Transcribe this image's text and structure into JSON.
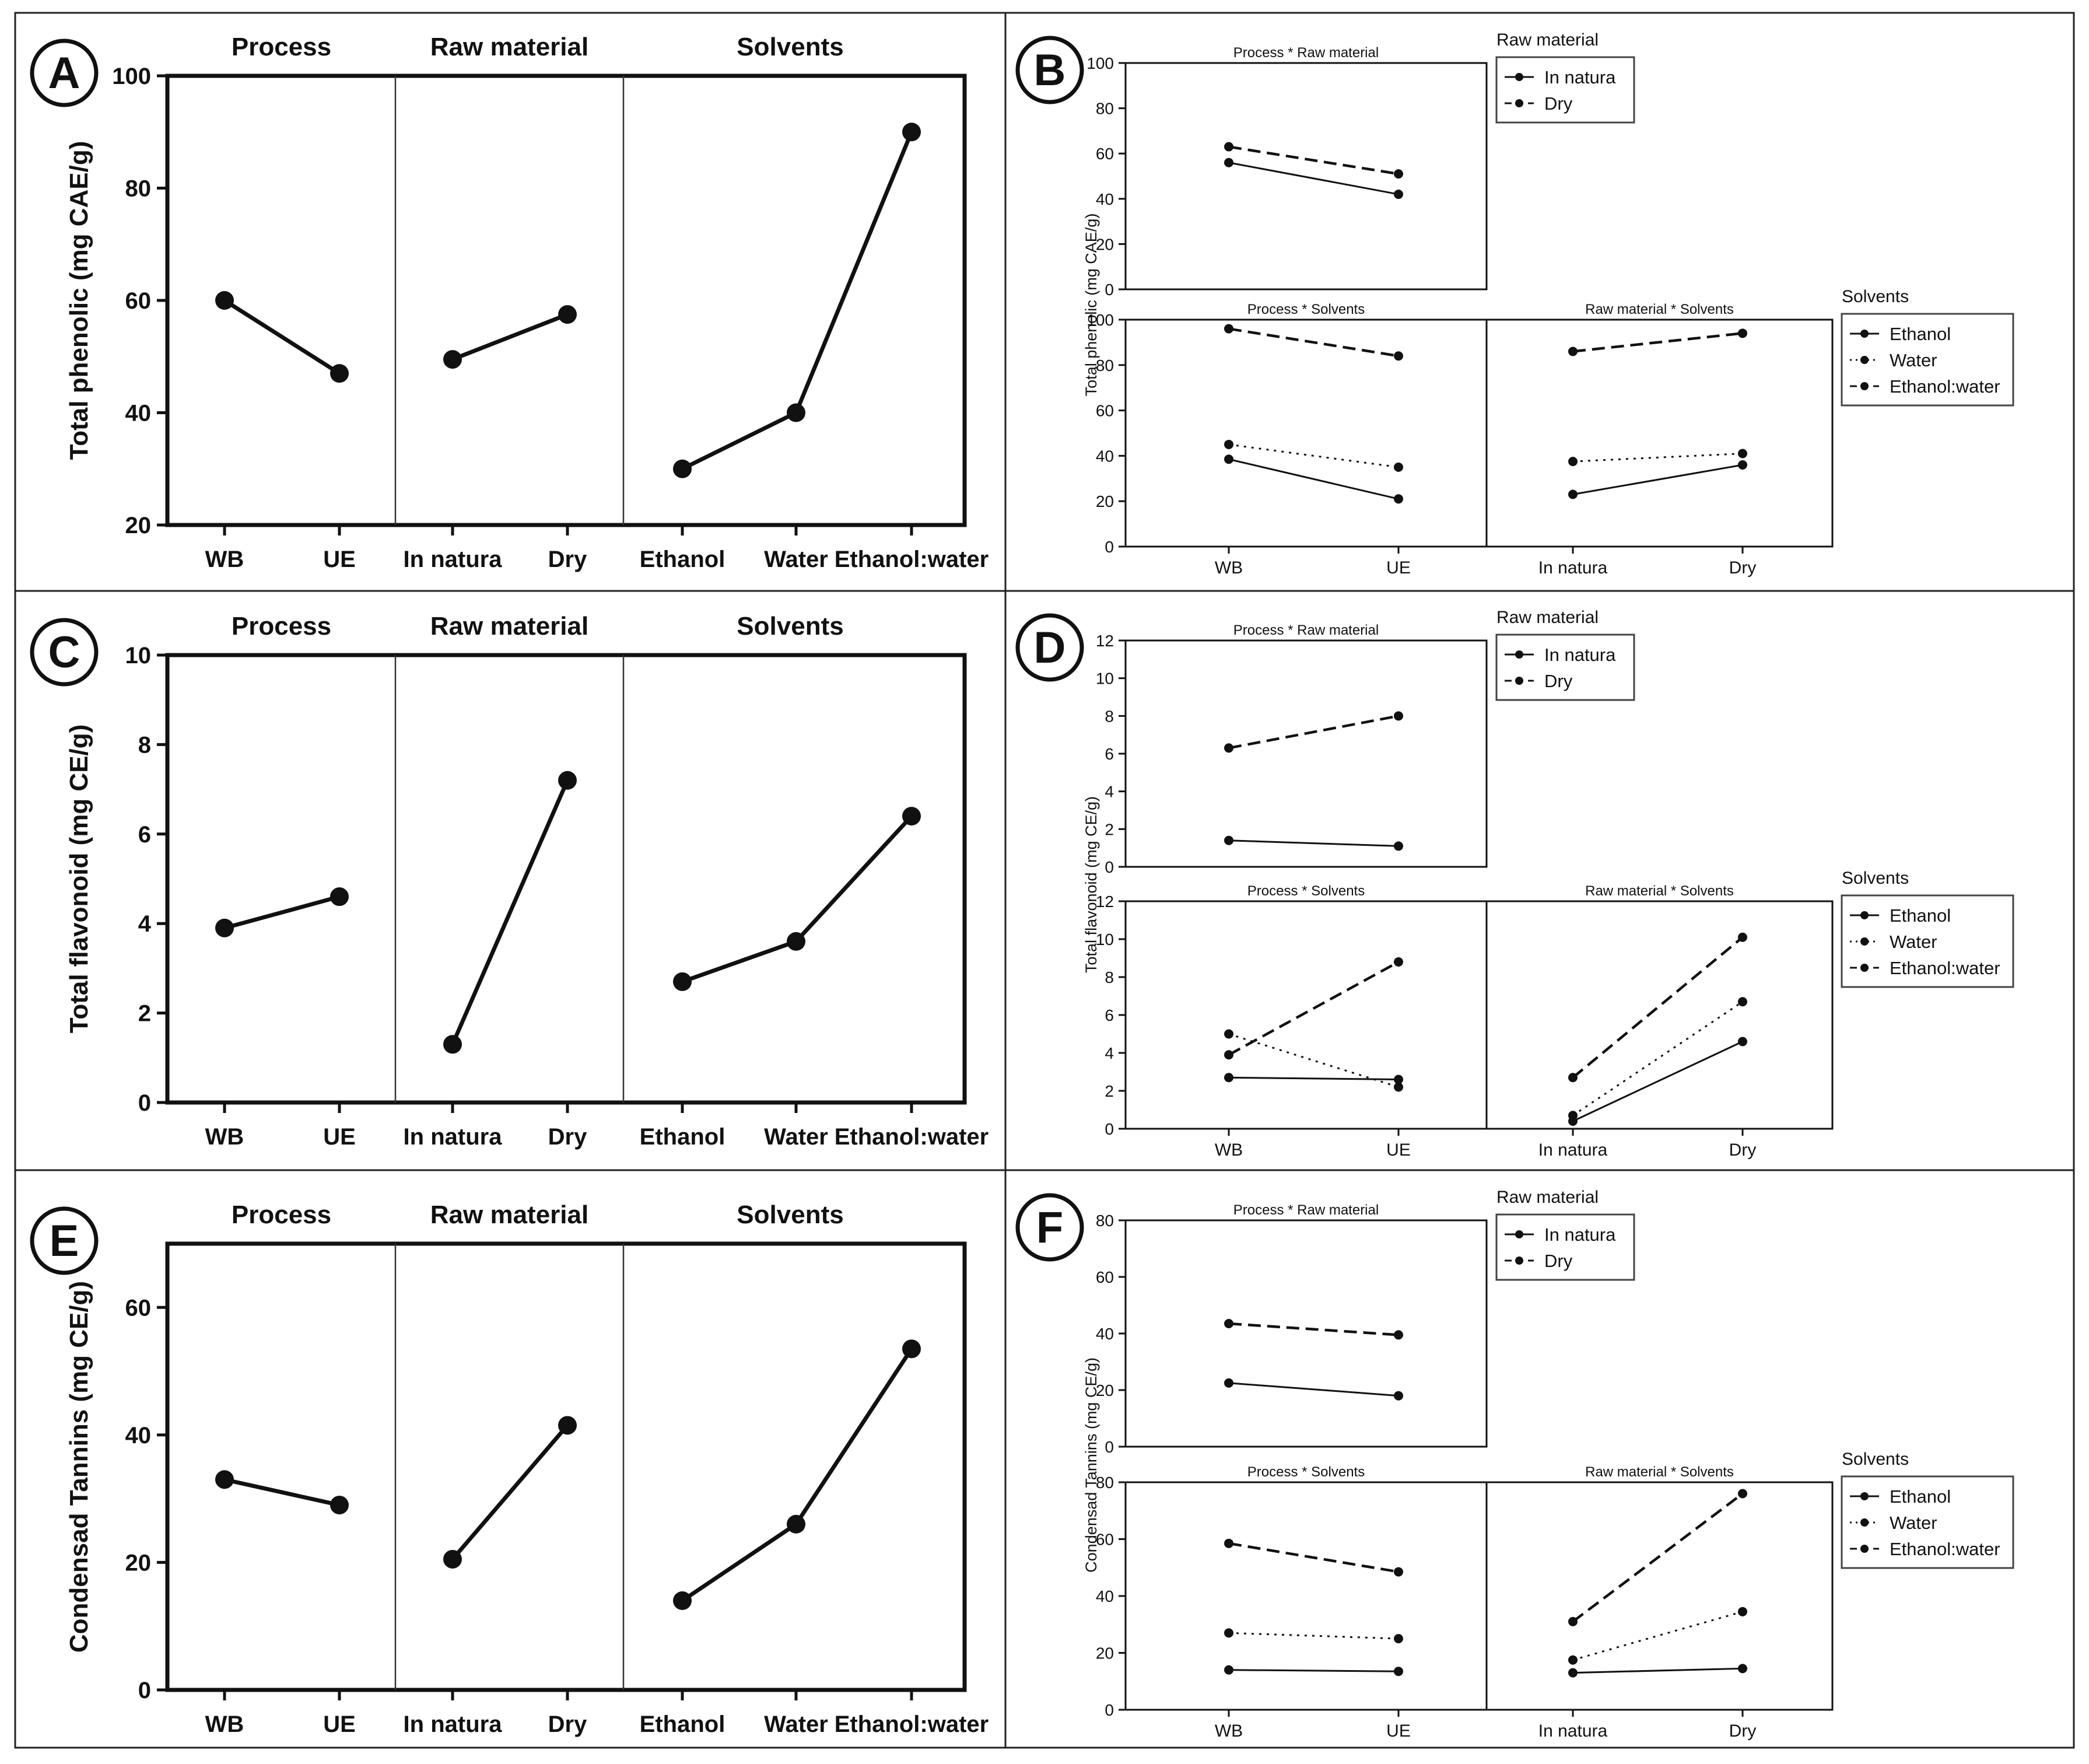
{
  "figure": {
    "panels": [
      {
        "id": "A",
        "kind": "main",
        "letter": "A",
        "ylabel": "Total phenolic (mg CAE/g)",
        "ymin": 20,
        "ymax": 100,
        "yticks": [
          20,
          40,
          60,
          80,
          100
        ]
      },
      {
        "id": "B",
        "kind": "interaction",
        "letter": "B",
        "ylabel": "Total phenolic (mg CAE/g)",
        "ymin": 0,
        "ymax": 100,
        "yticks": [
          0,
          20,
          40,
          60,
          80,
          100
        ]
      },
      {
        "id": "C",
        "kind": "main",
        "letter": "C",
        "ylabel": "Total flavonoid (mg CE/g)",
        "ymin": 0,
        "ymax": 10,
        "yticks": [
          0,
          2,
          4,
          6,
          8,
          10
        ]
      },
      {
        "id": "D",
        "kind": "interaction",
        "letter": "D",
        "ylabel": "Total flavonoid (mg CE/g)",
        "ymin": 0,
        "ymax": 12,
        "yticks": [
          0,
          2,
          4,
          6,
          8,
          10,
          12
        ]
      },
      {
        "id": "E",
        "kind": "main",
        "letter": "E",
        "ylabel": "Condensad Tannins (mg CE/g)",
        "ymin": 0,
        "ymax": 70,
        "yticks": [
          0,
          20,
          40,
          60
        ]
      },
      {
        "id": "F",
        "kind": "interaction",
        "letter": "F",
        "ylabel": "Condensad Tannins (mg CE/g)",
        "ymin": 0,
        "ymax": 80,
        "yticks": [
          0,
          20,
          40,
          60,
          80
        ]
      }
    ],
    "main_section_titles": [
      "Process",
      "Raw material",
      "Solvents"
    ],
    "main_categories": [
      [
        "WB",
        "UE"
      ],
      [
        "In natura",
        "Dry"
      ],
      [
        "Ethanol",
        "Water",
        "Ethanol:water"
      ]
    ],
    "interaction_titles": {
      "process_raw": "Process * Raw material",
      "process_solvents": "Process * Solvents",
      "raw_solvents": "Raw material * Solvents"
    },
    "legend_raw": {
      "title": "Raw material",
      "items": [
        "In natura",
        "Dry"
      ]
    },
    "legend_solvents": {
      "title": "Solvents",
      "items": [
        "Ethanol",
        "Water",
        "Ethanol:water"
      ]
    },
    "process_categories": [
      "WB",
      "UE"
    ],
    "raw_categories": [
      "In natura",
      "Dry"
    ]
  },
  "chart_data": [
    {
      "panel": "A",
      "type": "line",
      "ylabel": "Total phenolic (mg CAE/g)",
      "ylim": [
        20,
        100
      ],
      "groups": [
        {
          "name": "Process",
          "categories": [
            "WB",
            "UE"
          ],
          "values": [
            60,
            47
          ]
        },
        {
          "name": "Raw material",
          "categories": [
            "In natura",
            "Dry"
          ],
          "values": [
            49.5,
            57.5
          ]
        },
        {
          "name": "Solvents",
          "categories": [
            "Ethanol",
            "Water",
            "Ethanol:water"
          ],
          "values": [
            30,
            40,
            90
          ]
        }
      ]
    },
    {
      "panel": "B",
      "type": "line",
      "ylabel": "Total phenolic (mg CAE/g)",
      "ylim": [
        0,
        100
      ],
      "plots": [
        {
          "title": "Process * Raw material",
          "categories": [
            "WB",
            "UE"
          ],
          "series": [
            {
              "name": "In natura",
              "style": "solid",
              "values": [
                56,
                42
              ]
            },
            {
              "name": "Dry",
              "style": "dashed",
              "values": [
                63,
                51
              ]
            }
          ]
        },
        {
          "title": "Process * Solvents",
          "categories": [
            "WB",
            "UE"
          ],
          "series": [
            {
              "name": "Ethanol",
              "style": "solid",
              "values": [
                38.5,
                21
              ]
            },
            {
              "name": "Water",
              "style": "dotted",
              "values": [
                45,
                35
              ]
            },
            {
              "name": "Ethanol:water",
              "style": "dashed",
              "values": [
                96,
                84
              ]
            }
          ]
        },
        {
          "title": "Raw material * Solvents",
          "categories": [
            "In natura",
            "Dry"
          ],
          "series": [
            {
              "name": "Ethanol",
              "style": "solid",
              "values": [
                23,
                36
              ]
            },
            {
              "name": "Water",
              "style": "dotted",
              "values": [
                37.5,
                41
              ]
            },
            {
              "name": "Ethanol:water",
              "style": "dashed",
              "values": [
                86,
                94
              ]
            }
          ]
        }
      ]
    },
    {
      "panel": "C",
      "type": "line",
      "ylabel": "Total flavonoid (mg CE/g)",
      "ylim": [
        0,
        10
      ],
      "groups": [
        {
          "name": "Process",
          "categories": [
            "WB",
            "UE"
          ],
          "values": [
            3.9,
            4.6
          ]
        },
        {
          "name": "Raw material",
          "categories": [
            "In natura",
            "Dry"
          ],
          "values": [
            1.3,
            7.2
          ]
        },
        {
          "name": "Solvents",
          "categories": [
            "Ethanol",
            "Water",
            "Ethanol:water"
          ],
          "values": [
            2.7,
            3.6,
            6.4
          ]
        }
      ]
    },
    {
      "panel": "D",
      "type": "line",
      "ylabel": "Total flavonoid (mg CE/g)",
      "ylim": [
        0,
        12
      ],
      "plots": [
        {
          "title": "Process * Raw material",
          "categories": [
            "WB",
            "UE"
          ],
          "series": [
            {
              "name": "In natura",
              "style": "solid",
              "values": [
                1.4,
                1.1
              ]
            },
            {
              "name": "Dry",
              "style": "dashed",
              "values": [
                6.3,
                8.0
              ]
            }
          ]
        },
        {
          "title": "Process * Solvents",
          "categories": [
            "WB",
            "UE"
          ],
          "series": [
            {
              "name": "Ethanol",
              "style": "solid",
              "values": [
                2.7,
                2.6
              ]
            },
            {
              "name": "Water",
              "style": "dotted",
              "values": [
                5.0,
                2.2
              ]
            },
            {
              "name": "Ethanol:water",
              "style": "dashed",
              "values": [
                3.9,
                8.8
              ]
            }
          ]
        },
        {
          "title": "Raw material * Solvents",
          "categories": [
            "In natura",
            "Dry"
          ],
          "series": [
            {
              "name": "Ethanol",
              "style": "solid",
              "values": [
                0.4,
                4.6
              ]
            },
            {
              "name": "Water",
              "style": "dotted",
              "values": [
                0.7,
                6.7
              ]
            },
            {
              "name": "Ethanol:water",
              "style": "dashed",
              "values": [
                2.7,
                10.1
              ]
            }
          ]
        }
      ]
    },
    {
      "panel": "E",
      "type": "line",
      "ylabel": "Condensad Tannins (mg CE/g)",
      "ylim": [
        0,
        70
      ],
      "groups": [
        {
          "name": "Process",
          "categories": [
            "WB",
            "UE"
          ],
          "values": [
            33,
            29
          ]
        },
        {
          "name": "Raw material",
          "categories": [
            "In natura",
            "Dry"
          ],
          "values": [
            20.5,
            41.5
          ]
        },
        {
          "name": "Solvents",
          "categories": [
            "Ethanol",
            "Water",
            "Ethanol:water"
          ],
          "values": [
            14,
            26,
            53.5
          ]
        }
      ]
    },
    {
      "panel": "F",
      "type": "line",
      "ylabel": "Condensad Tannins (mg CE/g)",
      "ylim": [
        0,
        80
      ],
      "plots": [
        {
          "title": "Process * Raw material",
          "categories": [
            "WB",
            "UE"
          ],
          "series": [
            {
              "name": "In natura",
              "style": "solid",
              "values": [
                22.5,
                18
              ]
            },
            {
              "name": "Dry",
              "style": "dashed",
              "values": [
                43.5,
                39.5
              ]
            }
          ]
        },
        {
          "title": "Process * Solvents",
          "categories": [
            "WB",
            "UE"
          ],
          "series": [
            {
              "name": "Ethanol",
              "style": "solid",
              "values": [
                14,
                13.5
              ]
            },
            {
              "name": "Water",
              "style": "dotted",
              "values": [
                27,
                25
              ]
            },
            {
              "name": "Ethanol:water",
              "style": "dashed",
              "values": [
                58.5,
                48.5
              ]
            }
          ]
        },
        {
          "title": "Raw material * Solvents",
          "categories": [
            "In natura",
            "Dry"
          ],
          "series": [
            {
              "name": "Ethanol",
              "style": "solid",
              "values": [
                13,
                14.5
              ]
            },
            {
              "name": "Water",
              "style": "dotted",
              "values": [
                17.5,
                34.5
              ]
            },
            {
              "name": "Ethanol:water",
              "style": "dashed",
              "values": [
                31,
                76
              ]
            }
          ]
        }
      ]
    }
  ]
}
